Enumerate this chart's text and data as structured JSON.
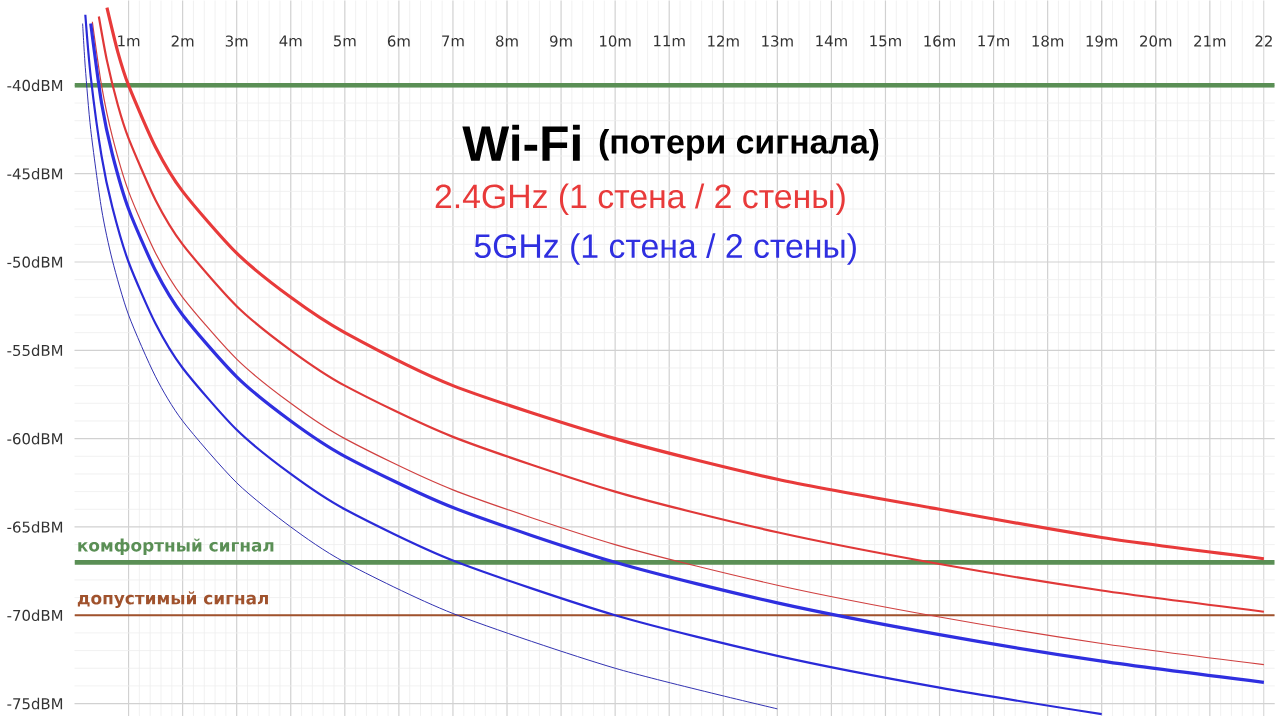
{
  "chart_data": {
    "type": "line",
    "title": "Wi-Fi",
    "subtitle": "(потери сигнала)",
    "annotations": [
      "2.4GHz  (1 стена / 2 стены)",
      "5GHz  (1 стена / 2 стены)"
    ],
    "series": [
      {
        "color": "#e83a3a",
        "x": [
          0.6,
          0.8,
          1,
          1.5,
          2,
          3,
          4,
          5,
          7,
          10,
          13,
          16,
          19,
          22
        ],
        "values": [
          -35.6,
          -38.1,
          -40,
          -43.5,
          -46,
          -49.5,
          -52,
          -54,
          -57,
          -60,
          -62.3,
          -64,
          -65.6,
          -66.8
        ]
      },
      {
        "color": "#e03838",
        "x": [
          0.45,
          0.6,
          0.8,
          1,
          1.5,
          2,
          3,
          4,
          5,
          7,
          10,
          13,
          16,
          19,
          22
        ],
        "values": [
          -36.1,
          -38.6,
          -41.1,
          -43,
          -46.5,
          -49,
          -52.5,
          -55,
          -57,
          -59.9,
          -63,
          -65.3,
          -67.1,
          -68.6,
          -69.8
        ]
      },
      {
        "color": "#d04040",
        "x": [
          0.33,
          0.5,
          0.7,
          1,
          1.5,
          2,
          3,
          4,
          5,
          7,
          10,
          13,
          16,
          19,
          22
        ],
        "values": [
          -36.4,
          -40,
          -42.9,
          -46,
          -49.5,
          -52,
          -55.5,
          -58,
          -60,
          -62.9,
          -66,
          -68.3,
          -70.1,
          -71.6,
          -72.8
        ]
      },
      {
        "color": "#2f2fe0",
        "x": [
          0.3,
          0.5,
          0.7,
          1,
          1.5,
          2,
          3,
          4,
          5,
          7,
          10,
          13,
          16,
          19,
          22
        ],
        "values": [
          -36.5,
          -41,
          -43.9,
          -47,
          -50.5,
          -53,
          -56.5,
          -59,
          -61,
          -63.9,
          -67,
          -69.3,
          -71.1,
          -72.6,
          -73.8
        ]
      },
      {
        "color": "#2a2ad8",
        "x": [
          0.2,
          0.3,
          0.5,
          0.7,
          1,
          1.5,
          2,
          3,
          4,
          5,
          7,
          10,
          13,
          16,
          19
        ],
        "values": [
          -36,
          -39.5,
          -44,
          -46.9,
          -50,
          -53.5,
          -56,
          -59.5,
          -62,
          -64,
          -66.9,
          -70,
          -72.3,
          -74.1,
          -75.6
        ]
      },
      {
        "color": "#3030b0",
        "x": [
          0.15,
          0.2,
          0.3,
          0.5,
          0.7,
          1,
          1.5,
          2,
          3,
          4,
          5,
          7,
          10,
          13
        ],
        "values": [
          -36.5,
          -39,
          -42.5,
          -47,
          -49.9,
          -53,
          -56.5,
          -59,
          -62.5,
          -65,
          -67,
          -69.9,
          -73,
          -75.3
        ]
      }
    ],
    "ref_lines": [
      {
        "axis": "y",
        "value": -40,
        "color": "#5a8f55"
      },
      {
        "axis": "y",
        "value": -67,
        "label": "комфортный сигнал",
        "color": "#5a8f55"
      },
      {
        "axis": "y",
        "value": -70,
        "label": "допустимый сигнал",
        "color": "#a0522d"
      }
    ],
    "xlim": [
      0,
      22.2
    ],
    "ylim": [
      -75.7,
      -35.2
    ],
    "xticks": [
      {
        "value": 1,
        "label": "1m"
      },
      {
        "value": 2,
        "label": "2m"
      },
      {
        "value": 3,
        "label": "3m"
      },
      {
        "value": 4,
        "label": "4m"
      },
      {
        "value": 5,
        "label": "5m"
      },
      {
        "value": 6,
        "label": "6m"
      },
      {
        "value": 7,
        "label": "7m"
      },
      {
        "value": 8,
        "label": "8m"
      },
      {
        "value": 9,
        "label": "9m"
      },
      {
        "value": 10,
        "label": "10m"
      },
      {
        "value": 11,
        "label": "11m"
      },
      {
        "value": 12,
        "label": "12m"
      },
      {
        "value": 13,
        "label": "13m"
      },
      {
        "value": 14,
        "label": "14m"
      },
      {
        "value": 15,
        "label": "15m"
      },
      {
        "value": 16,
        "label": "16m"
      },
      {
        "value": 17,
        "label": "17m"
      },
      {
        "value": 18,
        "label": "18m"
      },
      {
        "value": 19,
        "label": "19m"
      },
      {
        "value": 20,
        "label": "20m"
      },
      {
        "value": 21,
        "label": "21m"
      },
      {
        "value": 22,
        "label": "22"
      }
    ],
    "yticks": [
      {
        "value": -40,
        "label": "-40dBM"
      },
      {
        "value": -45,
        "label": "-45dBM"
      },
      {
        "value": -50,
        "label": "-50dBM"
      },
      {
        "value": -55,
        "label": "-55dBM"
      },
      {
        "value": -60,
        "label": "-60dBM"
      },
      {
        "value": -65,
        "label": "-65dBM"
      },
      {
        "value": -70,
        "label": "-70dBM"
      },
      {
        "value": -75,
        "label": "-75dBM"
      }
    ],
    "grid": true,
    "marker": "none",
    "line_style": "solid"
  }
}
